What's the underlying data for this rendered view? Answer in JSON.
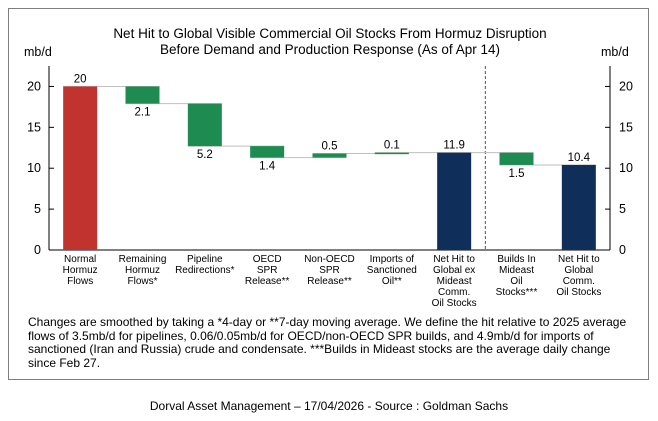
{
  "chart_data": {
    "type": "bar",
    "subtype": "waterfall",
    "title_lines": [
      "Net Hit to Global Visible Commercial Oil Stocks From Hormuz Disruption",
      "Before Demand and Production Response (As of Apr 14)"
    ],
    "ylabel_left": "mb/d",
    "ylabel_right": "mb/d",
    "ylim": [
      0,
      22.5
    ],
    "yticks": [
      "0",
      "5",
      "10",
      "15",
      "20"
    ],
    "grid": false,
    "bars": [
      {
        "category": [
          "Normal",
          "Hormuz",
          "Flows"
        ],
        "start": 0,
        "end": 20,
        "label": "20",
        "label_pos": "above",
        "color": "#c0332f"
      },
      {
        "category": [
          "Remaining",
          "Hormuz",
          "Flows*"
        ],
        "start": 20,
        "end": 17.9,
        "label": "2.1",
        "label_pos": "below",
        "color": "#1e8c50"
      },
      {
        "category": [
          "Pipeline",
          "Redirections*"
        ],
        "start": 17.9,
        "end": 12.7,
        "label": "5.2",
        "label_pos": "below",
        "color": "#1e8c50"
      },
      {
        "category": [
          "OECD",
          "SPR",
          "Release**"
        ],
        "start": 12.7,
        "end": 11.3,
        "label": "1.4",
        "label_pos": "below",
        "color": "#1e8c50"
      },
      {
        "category": [
          "Non-OECD",
          "SPR",
          "Release**"
        ],
        "start": 11.3,
        "end": 11.8,
        "label": "0.5",
        "label_pos": "above",
        "color": "#1e8c50"
      },
      {
        "category": [
          "Imports of",
          "Sanctioned",
          "Oil**"
        ],
        "start": 11.8,
        "end": 11.9,
        "label": "0.1",
        "label_pos": "above",
        "color": "#1e8c50"
      },
      {
        "category": [
          "Net Hit to",
          "Global ex",
          "Mideast",
          "Comm.",
          "Oil Stocks"
        ],
        "start": 0,
        "end": 11.9,
        "label": "11.9",
        "label_pos": "above",
        "color": "#0f2e59"
      },
      {
        "category": [
          "Builds In",
          "Mideast",
          "Oil",
          "Stocks***"
        ],
        "start": 11.9,
        "end": 10.4,
        "label": "1.5",
        "label_pos": "below",
        "color": "#1e8c50"
      },
      {
        "category": [
          "Net Hit to",
          "Global",
          "Comm.",
          "Oil Stocks"
        ],
        "start": 0,
        "end": 10.4,
        "label": "10.4",
        "label_pos": "above",
        "color": "#0f2e59"
      }
    ],
    "separator_after_index": 6
  },
  "note": "Changes are smoothed by taking a *4-day or **7-day moving average. We define the hit relative to 2025 average flows of 3.5mb/d for pipelines, 0.06/0.05mb/d for OECD/non-OECD SPR builds, and 4.9mb/d for imports of sanctioned (Iran and Russia) crude and condensate. ***Builds in Mideast stocks are the average daily change since Feb 27.",
  "source": "Dorval Asset Management – 17/04/2026 - Source : Goldman Sachs"
}
